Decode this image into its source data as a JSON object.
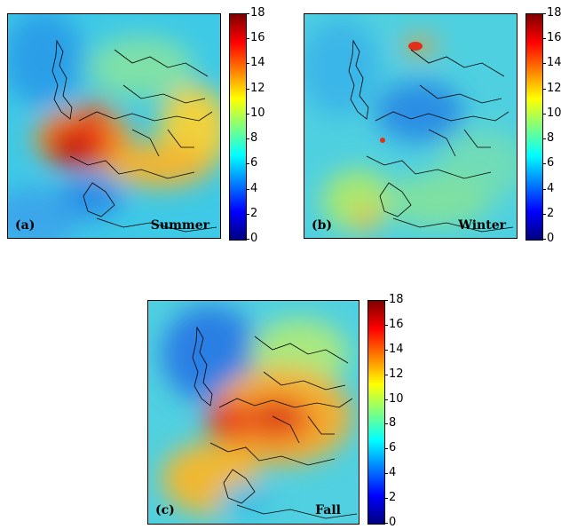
{
  "colorbar": {
    "ticks": [
      "18",
      "16",
      "14",
      "12",
      "10",
      "8",
      "6",
      "4",
      "2",
      "0"
    ],
    "range": [
      0,
      18
    ],
    "colormap": [
      "#00007f",
      "#0000ff",
      "#007fff",
      "#00ffff",
      "#7fff7f",
      "#ffff00",
      "#ff7f00",
      "#ff0000",
      "#7f0000"
    ]
  },
  "panels": [
    {
      "tag": "(a)",
      "season": "Summer"
    },
    {
      "tag": "(b)",
      "season": "Winter"
    },
    {
      "tag": "(c)",
      "season": "Fall"
    }
  ]
}
